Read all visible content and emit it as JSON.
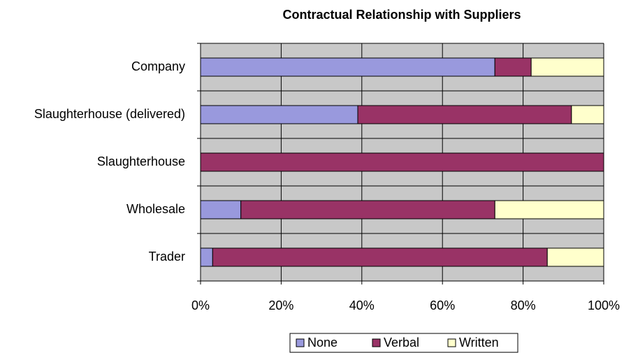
{
  "chart_data": {
    "type": "stacked_barh",
    "title": "Contractual Relationship with Suppliers",
    "categories": [
      "Company",
      "Slaughterhouse (delivered)",
      "Slaughterhouse",
      "Wholesale",
      "Trader"
    ],
    "series": [
      {
        "name": "None",
        "color": "#9999dd",
        "values": [
          73,
          39,
          0,
          10,
          3
        ]
      },
      {
        "name": "Verbal",
        "color": "#993366",
        "values": [
          9,
          53,
          100,
          63,
          83
        ]
      },
      {
        "name": "Written",
        "color": "#ffffcc",
        "values": [
          18,
          8,
          0,
          27,
          14
        ]
      }
    ],
    "xlim": [
      0,
      100
    ],
    "xticks": [
      {
        "value": 0,
        "label": "0%"
      },
      {
        "value": 20,
        "label": "20%"
      },
      {
        "value": 40,
        "label": "40%"
      },
      {
        "value": 60,
        "label": "60%"
      },
      {
        "value": 80,
        "label": "80%"
      },
      {
        "value": 100,
        "label": "100%"
      }
    ],
    "grid": true,
    "legend": "bottom"
  }
}
